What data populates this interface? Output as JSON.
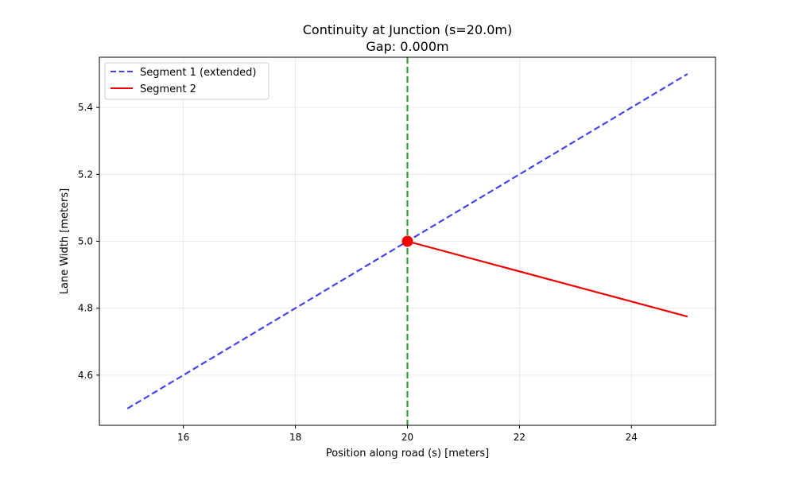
{
  "chart_data": {
    "type": "line",
    "title": "Continuity at Junction (s=20.0m)",
    "subtitle": "Gap: 0.000m",
    "xlabel": "Position along road (s) [meters]",
    "ylabel": "Lane Width [meters]",
    "xlim": [
      14.5,
      25.5
    ],
    "ylim": [
      4.45,
      5.55
    ],
    "xticks": [
      16,
      18,
      20,
      22,
      24
    ],
    "yticks": [
      4.6,
      4.8,
      5.0,
      5.2,
      5.4
    ],
    "xtick_labels": [
      "16",
      "18",
      "20",
      "22",
      "24"
    ],
    "ytick_labels": [
      "4.6",
      "4.8",
      "5.0",
      "5.2",
      "5.4"
    ],
    "grid": true,
    "legend_position": "top-left",
    "series": [
      {
        "name": "Segment 1 (extended)",
        "color": "#4444ee",
        "style": "dashed",
        "x": [
          15,
          25
        ],
        "y": [
          4.5,
          5.5
        ]
      },
      {
        "name": "Segment 2",
        "color": "#ee0000",
        "style": "solid",
        "x": [
          20,
          25
        ],
        "y": [
          5.0,
          4.775
        ]
      }
    ],
    "junction": {
      "x": 20,
      "y": 5.0,
      "line_color": "#3a9a3a",
      "marker_color": "#ee0000"
    }
  }
}
